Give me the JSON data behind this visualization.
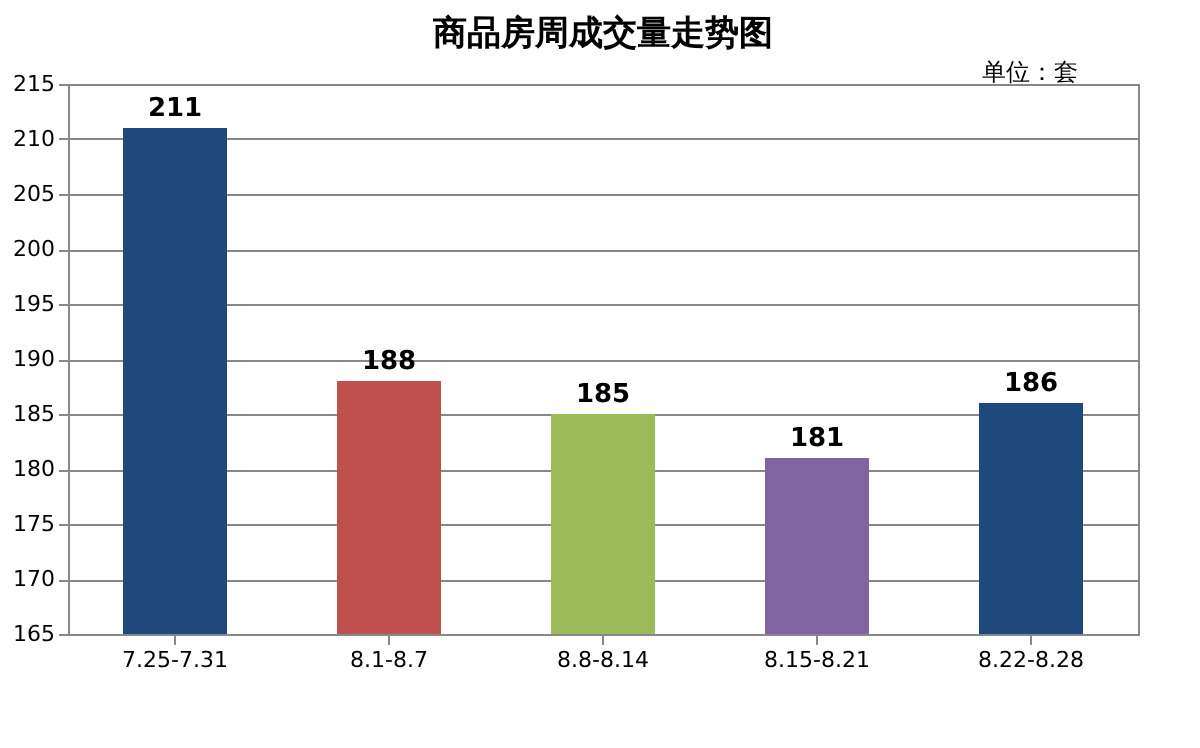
{
  "chart_data": {
    "type": "bar",
    "title": "商品房周成交量走势图",
    "categories": [
      "7.25-7.31",
      "8.1-8.7",
      "8.8-8.14",
      "8.15-8.21",
      "8.22-8.28"
    ],
    "values": [
      211,
      188,
      185,
      181,
      186
    ],
    "colors": [
      "#1f497d",
      "#c0504d",
      "#9bbb59",
      "#8064a2",
      "#1f497d"
    ],
    "ylim": [
      165,
      215
    ],
    "yticks": [
      165,
      170,
      175,
      180,
      185,
      190,
      195,
      200,
      205,
      210,
      215
    ],
    "grid": "y",
    "data_labels": true,
    "legend": false,
    "annotations": [
      "单位：套"
    ]
  }
}
